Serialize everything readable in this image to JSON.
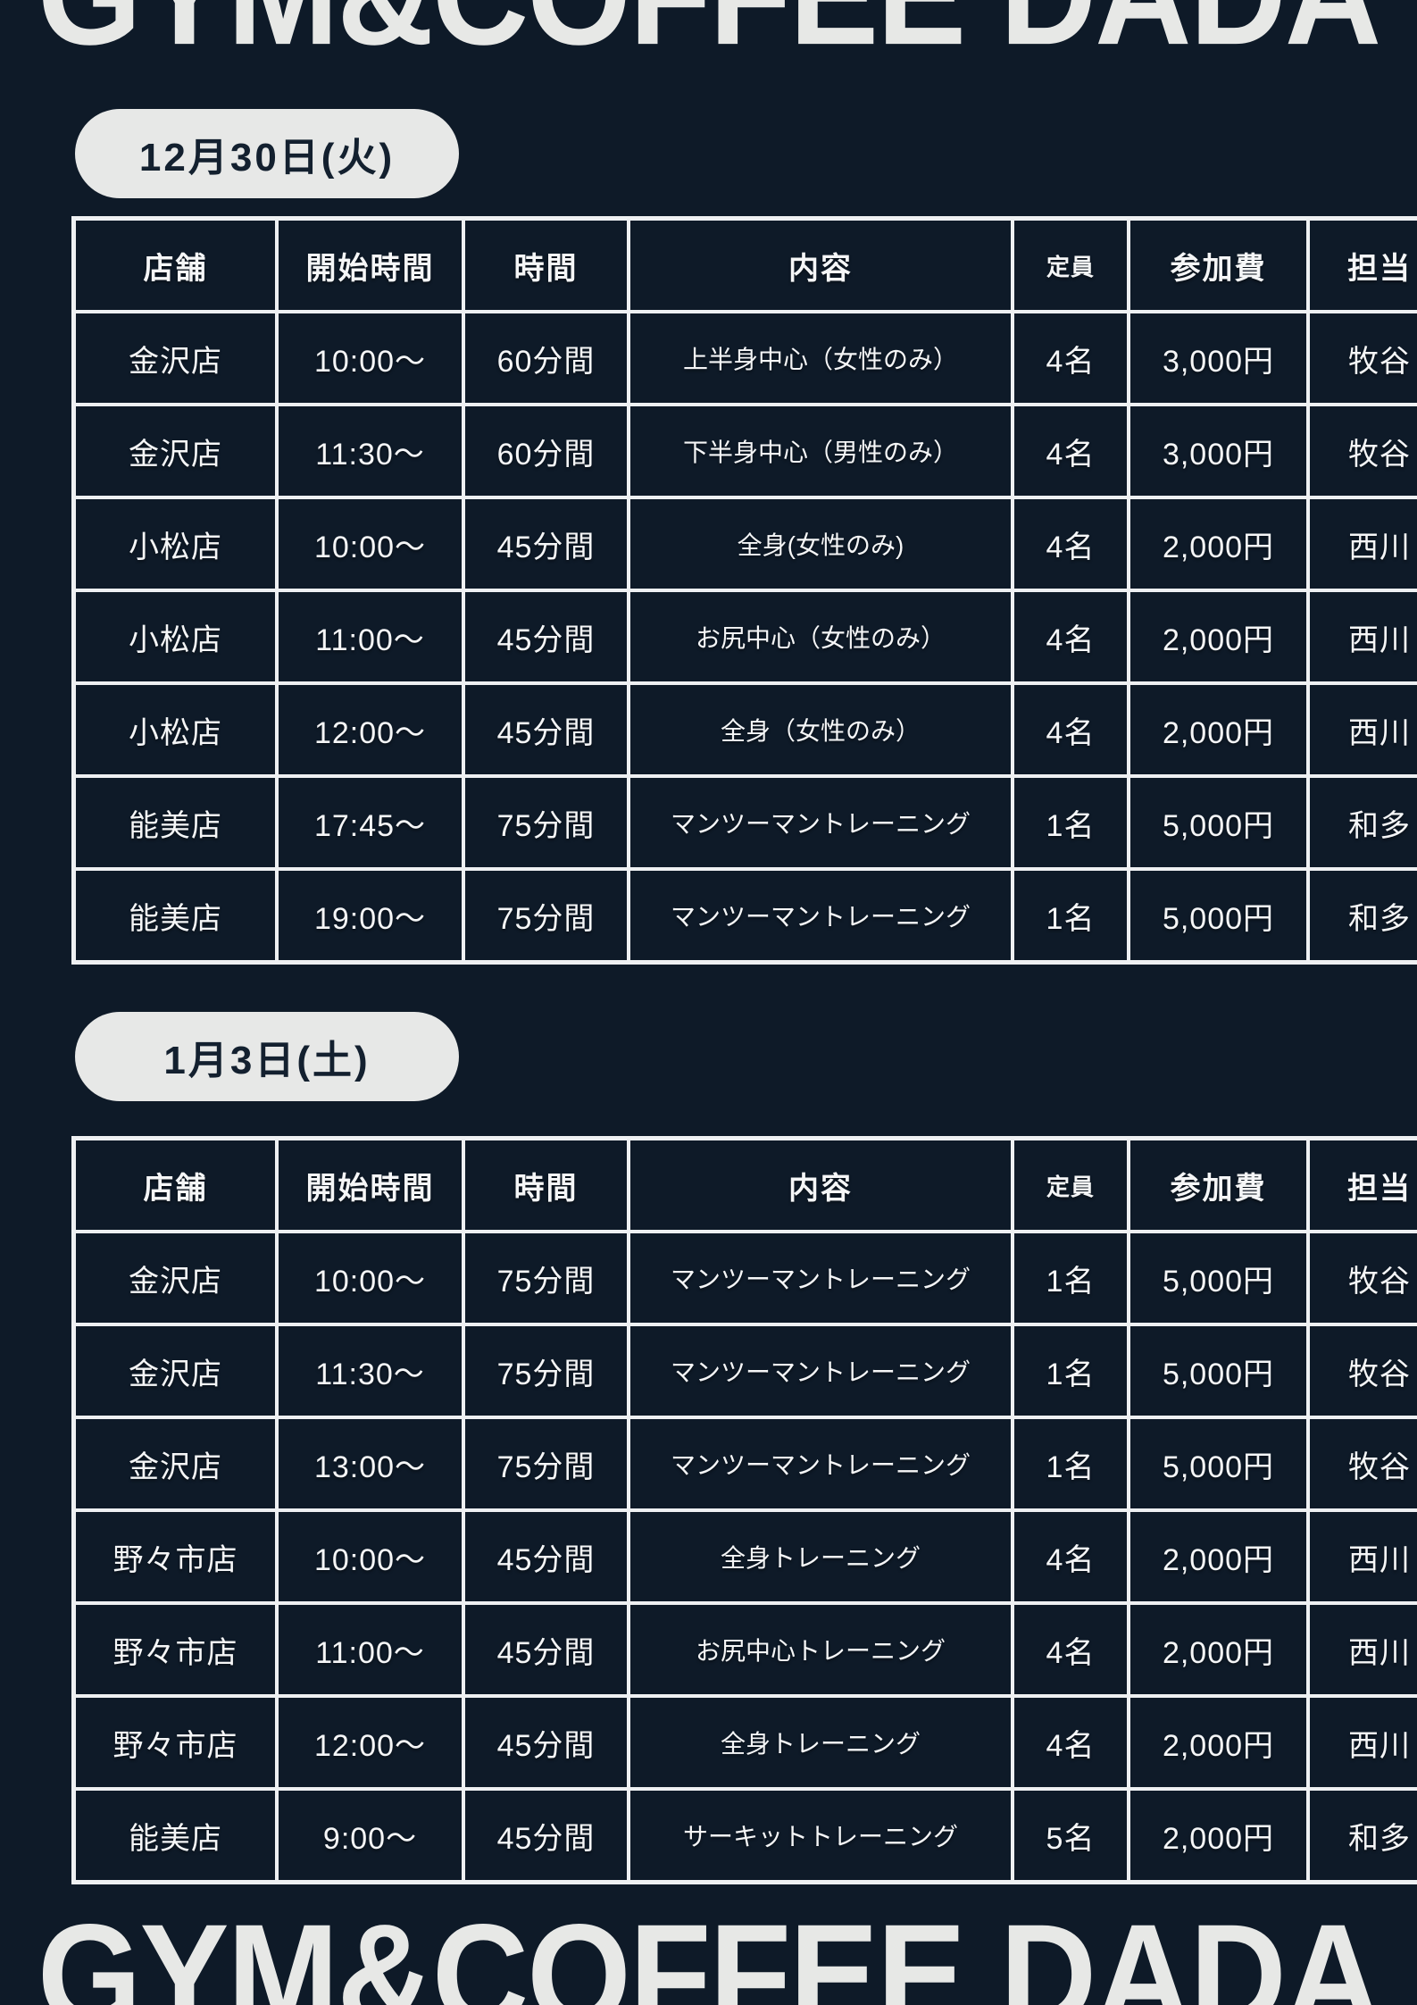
{
  "page": {
    "title_top": "GYM&COFFEE DADA",
    "title_bottom": "GYM&COFFEE DADA",
    "colors": {
      "background": "#0e1a28",
      "table_border": "#eef0f2",
      "text": "#f5f6f7",
      "badge_background": "#e7e8e7",
      "badge_text": "#13202f",
      "title_text": "#e7e8e6"
    }
  },
  "sections": [
    {
      "date_badge": "12月30日(火)",
      "columns": [
        "店舗",
        "開始時間",
        "時間",
        "内容",
        "定員",
        "参加費",
        "担当"
      ],
      "rows": [
        [
          "金沢店",
          "10:00〜",
          "60分間",
          "上半身中心（女性のみ）",
          "4名",
          "3,000円",
          "牧谷"
        ],
        [
          "金沢店",
          "11:30〜",
          "60分間",
          "下半身中心（男性のみ）",
          "4名",
          "3,000円",
          "牧谷"
        ],
        [
          "小松店",
          "10:00〜",
          "45分間",
          "全身(女性のみ)",
          "4名",
          "2,000円",
          "西川"
        ],
        [
          "小松店",
          "11:00〜",
          "45分間",
          "お尻中心（女性のみ）",
          "4名",
          "2,000円",
          "西川"
        ],
        [
          "小松店",
          "12:00〜",
          "45分間",
          "全身（女性のみ）",
          "4名",
          "2,000円",
          "西川"
        ],
        [
          "能美店",
          "17:45〜",
          "75分間",
          "マンツーマントレーニング",
          "1名",
          "5,000円",
          "和多"
        ],
        [
          "能美店",
          "19:00〜",
          "75分間",
          "マンツーマントレーニング",
          "1名",
          "5,000円",
          "和多"
        ]
      ]
    },
    {
      "date_badge": "1月3日(土)",
      "columns": [
        "店舗",
        "開始時間",
        "時間",
        "内容",
        "定員",
        "参加費",
        "担当"
      ],
      "rows": [
        [
          "金沢店",
          "10:00〜",
          "75分間",
          "マンツーマントレーニング",
          "1名",
          "5,000円",
          "牧谷"
        ],
        [
          "金沢店",
          "11:30〜",
          "75分間",
          "マンツーマントレーニング",
          "1名",
          "5,000円",
          "牧谷"
        ],
        [
          "金沢店",
          "13:00〜",
          "75分間",
          "マンツーマントレーニング",
          "1名",
          "5,000円",
          "牧谷"
        ],
        [
          "野々市店",
          "10:00〜",
          "45分間",
          "全身トレーニング",
          "4名",
          "2,000円",
          "西川"
        ],
        [
          "野々市店",
          "11:00〜",
          "45分間",
          "お尻中心トレーニング",
          "4名",
          "2,000円",
          "西川"
        ],
        [
          "野々市店",
          "12:00〜",
          "45分間",
          "全身トレーニング",
          "4名",
          "2,000円",
          "西川"
        ],
        [
          "能美店",
          "9:00〜",
          "45分間",
          "サーキットトレーニング",
          "5名",
          "2,000円",
          "和多"
        ]
      ]
    }
  ]
}
